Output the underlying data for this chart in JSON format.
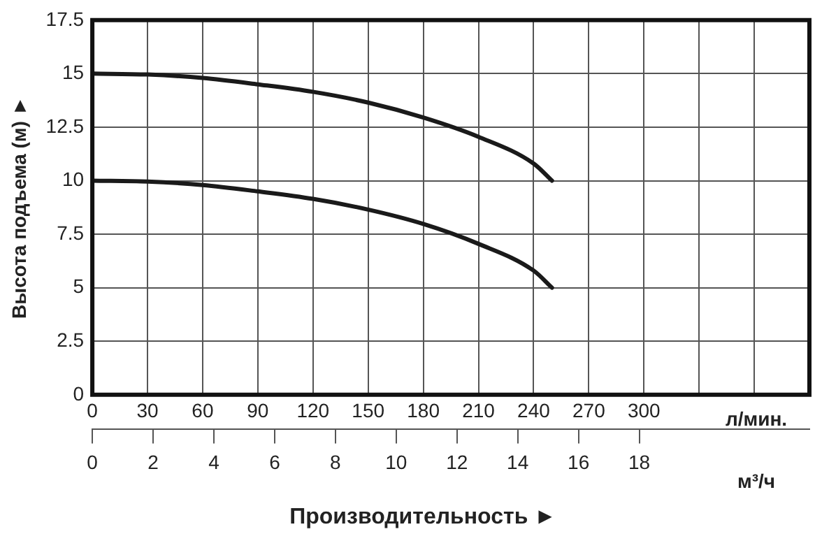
{
  "chart_data": {
    "type": "line",
    "ylabel": "Высота подъема (м) ►",
    "xlabel": "л/мин.",
    "x2label": "м³/ч",
    "annotations": [
      "Производительность ►"
    ],
    "x": [
      0,
      30,
      60,
      90,
      120,
      150,
      180,
      210,
      240,
      250
    ],
    "series": [
      {
        "color": "#1a1a1a",
        "values": [
          15.0,
          14.96,
          14.8,
          14.5,
          14.15,
          13.65,
          12.95,
          12.05,
          10.8,
          10.0
        ]
      },
      {
        "color": "#1a1a1a",
        "values": [
          10.0,
          9.96,
          9.8,
          9.5,
          9.15,
          8.65,
          7.98,
          7.05,
          5.8,
          5.0
        ]
      }
    ],
    "xlim": [
      0,
      390
    ],
    "xticks": [
      0,
      30,
      60,
      90,
      120,
      150,
      180,
      210,
      240,
      270,
      300,
      {
        "value": 330,
        "label": null
      },
      {
        "value": 360,
        "label": null
      }
    ],
    "x2lim": [
      0,
      23.6
    ],
    "x2ticks": [
      0,
      2,
      4,
      6,
      8,
      10,
      12,
      14,
      16,
      18
    ],
    "ylim": [
      0,
      17.5
    ],
    "yticks": [
      0,
      2.5,
      5,
      7.5,
      10,
      12.5,
      15,
      17.5
    ],
    "grid": true,
    "marker": "none",
    "line_style": "solid"
  }
}
